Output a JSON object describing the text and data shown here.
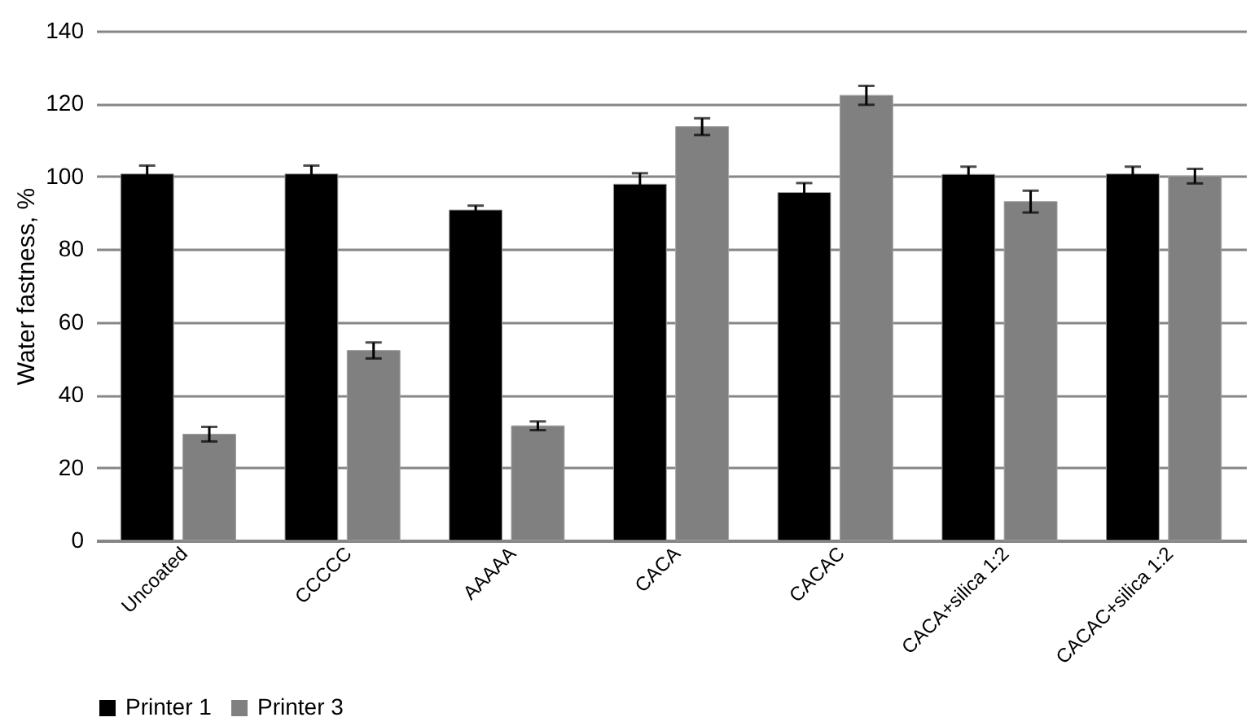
{
  "chart_data": {
    "type": "bar",
    "ylabel": "Water fastness, %",
    "categories": [
      "Uncoated",
      "CCCCC",
      "AAAAA",
      "CACA",
      "CACAC",
      "CACA+silica 1:2",
      "CACAC+silica 1:2"
    ],
    "series": [
      {
        "name": "Printer 1",
        "color": "#000000",
        "values": [
          100.7,
          100.7,
          90.8,
          97.9,
          95.6,
          100.6,
          100.7
        ],
        "errors": [
          2.3,
          2.3,
          1.2,
          3,
          2.6,
          2.1,
          2
        ]
      },
      {
        "name": "Printer 3",
        "color": "#808080",
        "values": [
          29.2,
          52.2,
          31.5,
          113.7,
          122.3,
          93.1,
          100.1
        ],
        "errors": [
          2,
          2.2,
          1.2,
          2.3,
          2.6,
          3,
          2
        ]
      }
    ],
    "ylim": [
      0,
      140
    ],
    "yticks": [
      0,
      20,
      40,
      60,
      80,
      100,
      120,
      140
    ],
    "grid": "y",
    "legend": "bottom"
  }
}
